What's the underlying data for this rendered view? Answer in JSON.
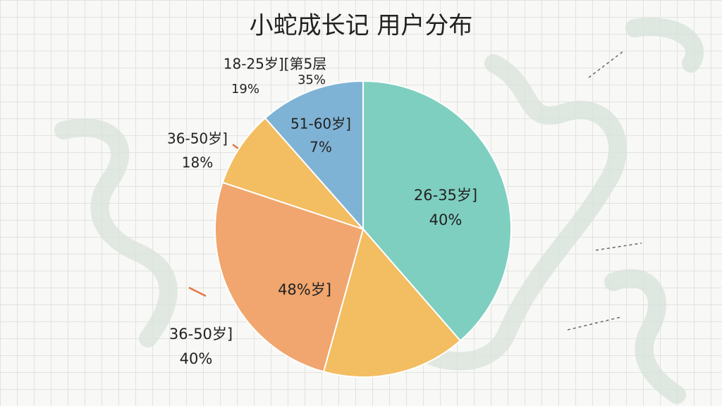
{
  "chart_data": {
    "type": "pie",
    "title": "小蛇成长记 用户分布",
    "values": [
      38.6,
      15.7,
      25.8,
      8.4,
      11.5
    ],
    "colors": [
      "#7ecfc0",
      "#f3bd62",
      "#f0a66e",
      "#f3bd62",
      "#7fb3d5"
    ],
    "annotations": [
      "18-25岁][第5层",
      "19%",
      "35%",
      "51-60岁]",
      "7%",
      "36-50岁]",
      "18%",
      "26-35岁]",
      "40%",
      "48%岁]",
      "36-50岁]",
      "40%"
    ]
  }
}
